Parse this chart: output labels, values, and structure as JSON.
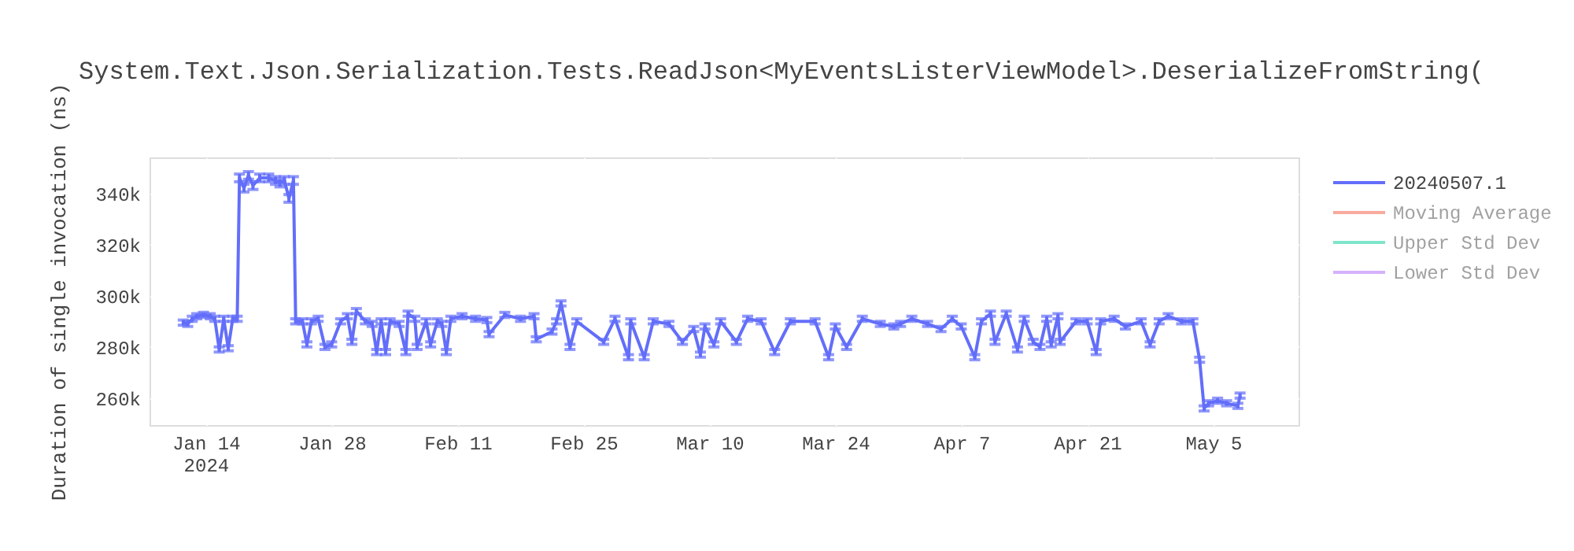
{
  "chart_data": {
    "type": "line",
    "title": "System.Text.Json.Serialization.Tests.ReadJson<MyEventsListerViewModel>.DeserializeFromString(",
    "ylabel": "Duration of single invocation (ns)",
    "x": [
      "2024-01-11T12:00",
      "2024-01-12T00:00",
      "2024-01-12T12:00",
      "2024-01-13T00:00",
      "2024-01-13T18:00",
      "2024-01-14T12:00",
      "2024-01-15T00:00",
      "2024-01-15T12:00",
      "2024-01-16T00:00",
      "2024-01-16T12:00",
      "2024-01-17T00:00",
      "2024-01-17T12:00",
      "2024-01-17T18:00",
      "2024-01-18T06:00",
      "2024-01-18T18:00",
      "2024-01-19T06:00",
      "2024-01-20T00:00",
      "2024-01-21T00:00",
      "2024-01-21T18:00",
      "2024-01-22T06:00",
      "2024-01-22T18:00",
      "2024-01-23T06:00",
      "2024-01-23T18:00",
      "2024-01-24T00:00",
      "2024-01-24T18:00",
      "2024-01-25T06:00",
      "2024-01-25T18:00",
      "2024-01-26T12:00",
      "2024-01-27T06:00",
      "2024-01-28T00:00",
      "2024-01-29T00:00",
      "2024-01-29T18:00",
      "2024-01-30T06:00",
      "2024-01-30T18:00",
      "2024-01-31T18:00",
      "2024-02-01T12:00",
      "2024-02-02T00:00",
      "2024-02-02T12:00",
      "2024-02-03T00:00",
      "2024-02-03T12:00",
      "2024-02-04T12:00",
      "2024-02-05T06:00",
      "2024-02-05T12:00",
      "2024-02-06T06:00",
      "2024-02-06T12:00",
      "2024-02-07T12:00",
      "2024-02-08T00:00",
      "2024-02-08T18:00",
      "2024-02-09T06:00",
      "2024-02-09T18:00",
      "2024-02-10T06:00",
      "2024-02-11T12:00",
      "2024-02-13T00:00",
      "2024-02-14T06:00",
      "2024-02-14T12:00",
      "2024-02-16T06:00",
      "2024-02-18T00:00",
      "2024-02-19T12:00",
      "2024-02-19T18:00",
      "2024-02-21T12:00",
      "2024-02-22T00:00",
      "2024-02-22T12:00",
      "2024-02-23T12:00",
      "2024-02-24T06:00",
      "2024-02-27T06:00",
      "2024-02-28T12:00",
      "2024-03-01T00:00",
      "2024-03-01T06:00",
      "2024-03-02T18:00",
      "2024-03-03T18:00",
      "2024-03-05T12:00",
      "2024-03-07T00:00",
      "2024-03-08T06:00",
      "2024-03-09T00:00",
      "2024-03-09T12:00",
      "2024-03-10T12:00",
      "2024-03-11T06:00",
      "2024-03-13T00:00",
      "2024-03-14T06:00",
      "2024-03-15T18:00",
      "2024-03-17T06:00",
      "2024-03-19T00:00",
      "2024-03-21T18:00",
      "2024-03-23T06:00",
      "2024-03-24T00:00",
      "2024-03-25T06:00",
      "2024-03-27T00:00",
      "2024-03-29T00:00",
      "2024-03-30T12:00",
      "2024-03-31T06:00",
      "2024-04-01T12:00",
      "2024-04-03T06:00",
      "2024-04-04T18:00",
      "2024-04-06T00:00",
      "2024-04-07T00:00",
      "2024-04-08T12:00",
      "2024-04-09T06:00",
      "2024-04-10T06:00",
      "2024-04-10T18:00",
      "2024-04-12T00:00",
      "2024-04-13T06:00",
      "2024-04-14T00:00",
      "2024-04-15T00:00",
      "2024-04-15T18:00",
      "2024-04-16T12:00",
      "2024-04-17T00:00",
      "2024-04-17T18:00",
      "2024-04-18T00:00",
      "2024-04-19T18:00",
      "2024-04-21T00:00",
      "2024-04-22T00:00",
      "2024-04-22T12:00",
      "2024-04-24T00:00",
      "2024-04-25T06:00",
      "2024-04-27T00:00",
      "2024-04-28T00:00",
      "2024-04-29T00:00",
      "2024-04-30T00:00",
      "2024-05-01T12:00",
      "2024-05-02T18:00",
      "2024-05-03T12:00",
      "2024-05-04T00:00",
      "2024-05-04T12:00",
      "2024-05-05T12:00",
      "2024-05-06T12:00",
      "2024-05-07T18:00",
      "2024-05-08T00:00"
    ],
    "series": [
      {
        "name": "20240507.1",
        "color": "#636efa",
        "values": [
          289500,
          289000,
          291000,
          292000,
          292500,
          292000,
          291000,
          279000,
          291000,
          279500,
          291000,
          291000,
          346000,
          342000,
          347000,
          343000,
          346000,
          346000,
          345000,
          344000,
          345000,
          338000,
          345000,
          290000,
          290000,
          281000,
          290000,
          291000,
          280000,
          281000,
          290000,
          292000,
          282000,
          294000,
          290000,
          289000,
          278000,
          290000,
          278000,
          290000,
          289000,
          278000,
          293000,
          291000,
          280000,
          290000,
          281000,
          290000,
          289000,
          278000,
          291000,
          292000,
          291000,
          290500,
          285000,
          292500,
          291000,
          292000,
          283000,
          286000,
          290000,
          297000,
          280000,
          290000,
          282000,
          291000,
          276000,
          290000,
          276000,
          290000,
          289000,
          282000,
          287000,
          277000,
          288000,
          281000,
          290000,
          282000,
          291000,
          290000,
          278000,
          290000,
          290000,
          276000,
          288000,
          280000,
          291000,
          289000,
          288000,
          289000,
          291000,
          289000,
          287000,
          291000,
          288000,
          276000,
          290000,
          293000,
          282000,
          293000,
          279000,
          291000,
          282000,
          280000,
          291000,
          281000,
          292000,
          282000,
          290000,
          290000,
          278000,
          290000,
          291000,
          288000,
          290000,
          281000,
          290000,
          292000,
          290000,
          290000,
          275000,
          256000,
          258000,
          259000,
          258000,
          257000,
          261000
        ],
        "errors": [
          1000,
          1000,
          1000,
          1000,
          1000,
          1000,
          1000,
          1000,
          1000,
          1000,
          1000,
          1000,
          1500,
          1500,
          1500,
          1500,
          1500,
          1500,
          1500,
          1500,
          1500,
          1500,
          1500,
          1000,
          1000,
          1000,
          1000,
          1000,
          1000,
          1000,
          1000,
          1000,
          1000,
          1000,
          1000,
          1000,
          1000,
          1000,
          1000,
          1000,
          1000,
          1000,
          1000,
          1000,
          1000,
          1000,
          1000,
          1000,
          1000,
          1000,
          1000,
          1000,
          1000,
          1000,
          1000,
          1000,
          1000,
          1000,
          1000,
          1000,
          1000,
          1000,
          1000,
          1000,
          1000,
          1000,
          1000,
          1000,
          1000,
          1000,
          1000,
          1000,
          1000,
          1000,
          1000,
          1000,
          1000,
          1000,
          1000,
          1000,
          1000,
          1000,
          1000,
          1000,
          1000,
          1000,
          1000,
          1000,
          1000,
          1000,
          1000,
          1000,
          1000,
          1000,
          1000,
          1000,
          1000,
          1000,
          1000,
          1000,
          1000,
          1000,
          1000,
          1000,
          1000,
          1000,
          1000,
          1000,
          1000,
          1000,
          1000,
          1000,
          1000,
          1000,
          1000,
          1000,
          1000,
          1000,
          1000,
          1000,
          1000,
          1000,
          1000,
          1000,
          1000,
          1000,
          1000
        ]
      },
      {
        "name": "Moving Average",
        "color": "#ef553b",
        "values": [
          null,
          null,
          null,
          null,
          null,
          null,
          null,
          null,
          null,
          null,
          null,
          null,
          null,
          null,
          null,
          null,
          null,
          null,
          null,
          null,
          null,
          null,
          null,
          null,
          null,
          null,
          null,
          null,
          null,
          null,
          null,
          null,
          null,
          null,
          null,
          null,
          null,
          null,
          null,
          null,
          null,
          null,
          null,
          null,
          null,
          null,
          null,
          null,
          null,
          null,
          null,
          null,
          null,
          null,
          null,
          null,
          null,
          null,
          null,
          null,
          null,
          null,
          null,
          null,
          null,
          null,
          null,
          null,
          null,
          null,
          null,
          null,
          null,
          null,
          null,
          null,
          null,
          null,
          null,
          null,
          null,
          null,
          null,
          null,
          null,
          null,
          null,
          null,
          null,
          null,
          null,
          null,
          null,
          null,
          null,
          null,
          null,
          null,
          null,
          null,
          null,
          null,
          null,
          null,
          null,
          null,
          null,
          null,
          null,
          null,
          null,
          null,
          null,
          null,
          null,
          null,
          null,
          null,
          null,
          null,
          null,
          null,
          null,
          null,
          null,
          null,
          null
        ]
      },
      {
        "name": "Upper Std Dev",
        "color": "#00cc96",
        "values": [
          null,
          null,
          null,
          null,
          null,
          null,
          null,
          null,
          null,
          null,
          null,
          null,
          null,
          null,
          null,
          null,
          null,
          null,
          null,
          null,
          null,
          null,
          null,
          null,
          null,
          null,
          null,
          null,
          null,
          null,
          null,
          null,
          null,
          null,
          null,
          null,
          null,
          null,
          null,
          null,
          null,
          null,
          null,
          null,
          null,
          null,
          null,
          null,
          null,
          null,
          null,
          null,
          null,
          null,
          null,
          null,
          null,
          null,
          null,
          null,
          null,
          null,
          null,
          null,
          null,
          null,
          null,
          null,
          null,
          null,
          null,
          null,
          null,
          null,
          null,
          null,
          null,
          null,
          null,
          null,
          null,
          null,
          null,
          null,
          null,
          null,
          null,
          null,
          null,
          null,
          null,
          null,
          null,
          null,
          null,
          null,
          null,
          null,
          null,
          null,
          null,
          null,
          null,
          null,
          null,
          null,
          null,
          null,
          null,
          null,
          null,
          null,
          null,
          null,
          null,
          null,
          null,
          null,
          null,
          null,
          null,
          null,
          null,
          null,
          null,
          null,
          null
        ]
      },
      {
        "name": "Lower Std Dev",
        "color": "#ab63fa",
        "values": [
          null,
          null,
          null,
          null,
          null,
          null,
          null,
          null,
          null,
          null,
          null,
          null,
          null,
          null,
          null,
          null,
          null,
          null,
          null,
          null,
          null,
          null,
          null,
          null,
          null,
          null,
          null,
          null,
          null,
          null,
          null,
          null,
          null,
          null,
          null,
          null,
          null,
          null,
          null,
          null,
          null,
          null,
          null,
          null,
          null,
          null,
          null,
          null,
          null,
          null,
          null,
          null,
          null,
          null,
          null,
          null,
          null,
          null,
          null,
          null,
          null,
          null,
          null,
          null,
          null,
          null,
          null,
          null,
          null,
          null,
          null,
          null,
          null,
          null,
          null,
          null,
          null,
          null,
          null,
          null,
          null,
          null,
          null,
          null,
          null,
          null,
          null,
          null,
          null,
          null,
          null,
          null,
          null,
          null,
          null,
          null,
          null,
          null,
          null,
          null,
          null,
          null,
          null,
          null,
          null,
          null,
          null,
          null,
          null,
          null,
          null,
          null,
          null,
          null,
          null,
          null,
          null,
          null,
          null,
          null,
          null,
          null,
          null,
          null,
          null,
          null,
          null
        ]
      }
    ],
    "xlim": [
      "2024-01-07T18:00",
      "2024-05-14T12:00"
    ],
    "xticks": [
      {
        "value": "2024-01-14",
        "label": "Jan 14\n2024"
      },
      {
        "value": "2024-01-28",
        "label": "Jan 28"
      },
      {
        "value": "2024-02-11",
        "label": "Feb 11"
      },
      {
        "value": "2024-02-25",
        "label": "Feb 25"
      },
      {
        "value": "2024-03-10",
        "label": "Mar 10"
      },
      {
        "value": "2024-03-24",
        "label": "Mar 24"
      },
      {
        "value": "2024-04-07",
        "label": "Apr 7"
      },
      {
        "value": "2024-04-21",
        "label": "Apr 21"
      },
      {
        "value": "2024-05-05",
        "label": "May 5"
      }
    ],
    "ylim": [
      249500,
      354000
    ],
    "yticks": [
      {
        "value": 260000,
        "label": "260k"
      },
      {
        "value": 280000,
        "label": "280k"
      },
      {
        "value": 300000,
        "label": "300k"
      },
      {
        "value": 320000,
        "label": "320k"
      },
      {
        "value": 340000,
        "label": "340k"
      }
    ],
    "grid": true,
    "legend": "top right",
    "marker": "none",
    "line_style": "solid"
  }
}
